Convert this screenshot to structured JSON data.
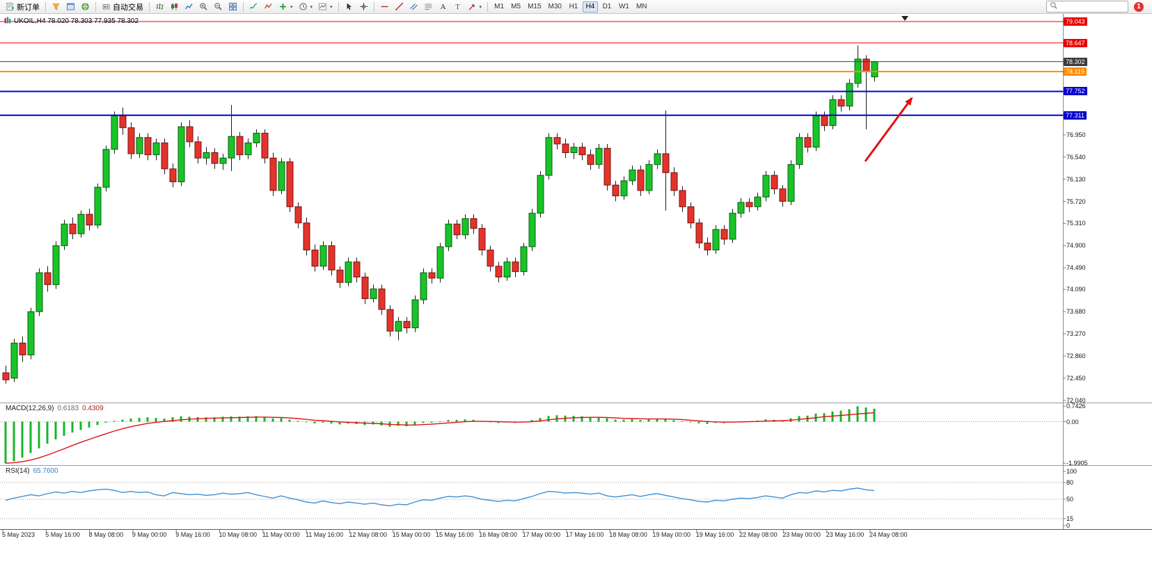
{
  "toolbar": {
    "new_order_label": "新订单",
    "auto_trading_label": "自动交易",
    "app_icons": [
      "market-watch-icon",
      "data-window-icon",
      "community-icon"
    ],
    "chart_tool_icons": [
      "bar-chart-icon",
      "candlestick-icon",
      "line-chart-icon",
      "zoom-in-icon",
      "zoom-out-icon",
      "tile-windows-icon"
    ],
    "indicator_tool_icons": [
      "indicators-icon",
      "objects-icon",
      "add-indicator-icon",
      "periods-icon",
      "templates-icon"
    ],
    "cursor_tool_icons": [
      "cursor-icon",
      "crosshair-icon"
    ],
    "draw_tool_icons": [
      "horizontal-line-icon",
      "trendline-icon",
      "channel-icon",
      "fibonacci-icon",
      "text-icon",
      "label-icon",
      "shapes-icon"
    ],
    "dropdown_icons": [
      "add-indicator-icon",
      "periods-icon",
      "templates-icon",
      "shap es-icon"
    ],
    "timeframes": [
      "M1",
      "M5",
      "M15",
      "M30",
      "H1",
      "H4",
      "D1",
      "W1",
      "MN"
    ],
    "active_timeframe": "H4",
    "notification_badge": "1",
    "search_placeholder": ""
  },
  "chart": {
    "title": "UKOIL,H4 78.020 78.303 77.935 78.302",
    "symbol": "UKOIL",
    "period": "H4",
    "open": "78.020",
    "high": "78.303",
    "low": "77.935",
    "close": "78.302",
    "macd_name": "MACD(12,26,9)",
    "macd_value_main": "0.6183",
    "macd_value_signal": "0.4309",
    "rsi_name": "RSI(14)",
    "rsi_value": "65.7600"
  },
  "colors": {
    "bull": "#18c428",
    "bear": "#e2342c",
    "wick": "#1a1a1a",
    "macd_hist": "#18b42a",
    "macd_signal": "#e01010",
    "rsi_line": "#3f8fd2",
    "arrow": "#e01010"
  },
  "chart_data": {
    "type": "candlestick",
    "symbol": "UKOIL",
    "timeframe": "H4",
    "price_levels": [
      {
        "label": "79.043",
        "value": 79.043,
        "color": "#e80000",
        "width": 1
      },
      {
        "label": "78.647",
        "value": 78.647,
        "color": "#e80000",
        "width": 1
      },
      {
        "label": "78.302",
        "value": 78.302,
        "color": "#3c3c3c",
        "width": 1
      },
      {
        "label": "78.119",
        "value": 78.119,
        "color": "#ff8c00",
        "width": 2
      },
      {
        "label": "77.752",
        "value": 77.752,
        "color": "#0000cc",
        "width": 2
      },
      {
        "label": "77.311",
        "value": 77.311,
        "color": "#0000cc",
        "width": 2
      }
    ],
    "price_ticks": [
      "76.950",
      "76.540",
      "76.130",
      "75.720",
      "75.310",
      "74.900",
      "74.490",
      "74.090",
      "73.680",
      "73.270",
      "72.860",
      "72.450",
      "72.040"
    ],
    "candles": [
      [
        72.55,
        72.68,
        72.35,
        72.42
      ],
      [
        72.45,
        73.18,
        72.38,
        73.1
      ],
      [
        73.1,
        73.22,
        72.75,
        72.88
      ],
      [
        72.88,
        73.75,
        72.8,
        73.68
      ],
      [
        73.68,
        74.48,
        73.6,
        74.4
      ],
      [
        74.4,
        74.52,
        74.05,
        74.18
      ],
      [
        74.18,
        74.98,
        74.1,
        74.9
      ],
      [
        74.9,
        75.38,
        74.82,
        75.3
      ],
      [
        75.3,
        75.42,
        75.02,
        75.12
      ],
      [
        75.12,
        75.55,
        75.05,
        75.48
      ],
      [
        75.48,
        75.58,
        75.18,
        75.28
      ],
      [
        75.28,
        76.05,
        75.22,
        75.98
      ],
      [
        75.98,
        76.75,
        75.9,
        76.68
      ],
      [
        76.68,
        77.38,
        76.6,
        77.3
      ],
      [
        77.3,
        77.45,
        76.95,
        77.08
      ],
      [
        77.08,
        77.18,
        76.5,
        76.6
      ],
      [
        76.6,
        76.98,
        76.52,
        76.9
      ],
      [
        76.9,
        76.98,
        76.48,
        76.58
      ],
      [
        76.58,
        76.88,
        76.48,
        76.8
      ],
      [
        76.8,
        76.88,
        76.22,
        76.32
      ],
      [
        76.32,
        76.42,
        75.98,
        76.08
      ],
      [
        76.08,
        77.18,
        76.0,
        77.1
      ],
      [
        77.1,
        77.22,
        76.72,
        76.82
      ],
      [
        76.82,
        76.92,
        76.42,
        76.52
      ],
      [
        76.52,
        76.72,
        76.4,
        76.62
      ],
      [
        76.62,
        76.7,
        76.32,
        76.42
      ],
      [
        76.42,
        76.6,
        76.3,
        76.52
      ],
      [
        76.52,
        77.5,
        76.28,
        76.92
      ],
      [
        76.92,
        77.0,
        76.48,
        76.58
      ],
      [
        76.58,
        76.88,
        76.5,
        76.8
      ],
      [
        76.8,
        77.05,
        76.72,
        76.98
      ],
      [
        76.98,
        77.05,
        76.42,
        76.52
      ],
      [
        76.52,
        76.62,
        75.82,
        75.92
      ],
      [
        75.92,
        76.52,
        75.85,
        76.45
      ],
      [
        76.45,
        76.52,
        75.52,
        75.62
      ],
      [
        75.62,
        75.7,
        75.22,
        75.32
      ],
      [
        75.32,
        75.42,
        74.72,
        74.82
      ],
      [
        74.82,
        74.92,
        74.42,
        74.52
      ],
      [
        74.52,
        74.98,
        74.45,
        74.9
      ],
      [
        74.9,
        74.98,
        74.35,
        74.45
      ],
      [
        74.45,
        74.52,
        74.12,
        74.22
      ],
      [
        74.22,
        74.68,
        74.15,
        74.6
      ],
      [
        74.6,
        74.68,
        74.22,
        74.32
      ],
      [
        74.32,
        74.4,
        73.82,
        73.92
      ],
      [
        73.92,
        74.18,
        73.85,
        74.1
      ],
      [
        74.1,
        74.18,
        73.62,
        73.72
      ],
      [
        73.72,
        73.8,
        73.22,
        73.32
      ],
      [
        73.32,
        73.58,
        73.15,
        73.5
      ],
      [
        73.5,
        73.58,
        73.28,
        73.38
      ],
      [
        73.38,
        73.98,
        73.3,
        73.9
      ],
      [
        73.9,
        74.48,
        73.82,
        74.4
      ],
      [
        74.4,
        74.48,
        74.2,
        74.3
      ],
      [
        74.3,
        74.95,
        74.22,
        74.88
      ],
      [
        74.88,
        75.38,
        74.8,
        75.3
      ],
      [
        75.3,
        75.38,
        75.02,
        75.1
      ],
      [
        75.1,
        75.48,
        75.02,
        75.4
      ],
      [
        75.4,
        75.48,
        75.12,
        75.22
      ],
      [
        75.22,
        75.3,
        74.72,
        74.82
      ],
      [
        74.82,
        74.9,
        74.42,
        74.52
      ],
      [
        74.52,
        74.6,
        74.22,
        74.32
      ],
      [
        74.32,
        74.68,
        74.25,
        74.6
      ],
      [
        74.6,
        74.68,
        74.32,
        74.42
      ],
      [
        74.42,
        74.95,
        74.35,
        74.88
      ],
      [
        74.88,
        75.58,
        74.8,
        75.5
      ],
      [
        75.5,
        76.28,
        75.42,
        76.2
      ],
      [
        76.2,
        76.98,
        76.12,
        76.9
      ],
      [
        76.9,
        76.98,
        76.68,
        76.78
      ],
      [
        76.78,
        76.88,
        76.52,
        76.62
      ],
      [
        76.62,
        76.8,
        76.5,
        76.72
      ],
      [
        76.72,
        76.8,
        76.48,
        76.58
      ],
      [
        76.58,
        76.68,
        76.3,
        76.4
      ],
      [
        76.4,
        76.78,
        76.32,
        76.7
      ],
      [
        76.7,
        76.78,
        75.92,
        76.02
      ],
      [
        76.02,
        76.1,
        75.72,
        75.82
      ],
      [
        75.82,
        76.18,
        75.75,
        76.1
      ],
      [
        76.1,
        76.38,
        76.02,
        76.3
      ],
      [
        76.3,
        76.38,
        75.82,
        75.92
      ],
      [
        75.92,
        76.48,
        75.85,
        76.4
      ],
      [
        76.4,
        76.68,
        76.32,
        76.6
      ],
      [
        76.6,
        77.4,
        75.55,
        76.25
      ],
      [
        76.25,
        76.35,
        75.82,
        75.92
      ],
      [
        75.92,
        76.0,
        75.52,
        75.62
      ],
      [
        75.62,
        75.7,
        75.22,
        75.32
      ],
      [
        75.32,
        75.4,
        74.85,
        74.95
      ],
      [
        74.95,
        75.05,
        74.72,
        74.82
      ],
      [
        74.82,
        75.28,
        74.75,
        75.2
      ],
      [
        75.2,
        75.28,
        74.92,
        75.02
      ],
      [
        75.02,
        75.58,
        74.95,
        75.5
      ],
      [
        75.5,
        75.78,
        75.42,
        75.7
      ],
      [
        75.7,
        75.78,
        75.52,
        75.62
      ],
      [
        75.62,
        75.88,
        75.55,
        75.8
      ],
      [
        75.8,
        76.28,
        75.72,
        76.2
      ],
      [
        76.2,
        76.28,
        75.85,
        75.95
      ],
      [
        75.95,
        76.02,
        75.62,
        75.72
      ],
      [
        75.72,
        76.48,
        75.65,
        76.4
      ],
      [
        76.4,
        76.98,
        76.32,
        76.9
      ],
      [
        76.9,
        76.98,
        76.62,
        76.72
      ],
      [
        76.72,
        77.38,
        76.65,
        77.3
      ],
      [
        77.3,
        77.38,
        77.02,
        77.12
      ],
      [
        77.12,
        77.68,
        77.05,
        77.6
      ],
      [
        77.6,
        77.68,
        77.38,
        77.48
      ],
      [
        77.48,
        77.98,
        77.4,
        77.9
      ],
      [
        77.9,
        78.6,
        77.82,
        78.35
      ],
      [
        78.35,
        78.42,
        77.05,
        78.12
      ],
      [
        78.02,
        78.303,
        77.935,
        78.302
      ]
    ],
    "macd": {
      "name": "MACD(12,26,9)",
      "current_main": 0.6183,
      "current_signal": 0.4309,
      "axis_labels": [
        "0.7426",
        "0.00",
        "-1.9905"
      ],
      "hist": [
        -1.99,
        -1.9,
        -1.72,
        -1.5,
        -1.28,
        -1.05,
        -0.85,
        -0.68,
        -0.52,
        -0.4,
        -0.28,
        -0.16,
        -0.05,
        0.04,
        0.1,
        0.15,
        0.18,
        0.21,
        0.18,
        0.15,
        0.22,
        0.26,
        0.24,
        0.22,
        0.21,
        0.21,
        0.24,
        0.25,
        0.24,
        0.26,
        0.27,
        0.22,
        0.16,
        0.17,
        0.1,
        0.04,
        -0.03,
        -0.08,
        -0.05,
        -0.09,
        -0.13,
        -0.09,
        -0.11,
        -0.16,
        -0.13,
        -0.18,
        -0.24,
        -0.2,
        -0.22,
        -0.14,
        -0.06,
        -0.05,
        0.02,
        0.08,
        0.09,
        0.11,
        0.09,
        0.03,
        -0.02,
        -0.06,
        -0.04,
        -0.06,
        0.0,
        0.08,
        0.18,
        0.28,
        0.31,
        0.29,
        0.28,
        0.26,
        0.23,
        0.23,
        0.16,
        0.1,
        0.1,
        0.12,
        0.08,
        0.11,
        0.14,
        0.12,
        0.07,
        0.02,
        -0.03,
        -0.08,
        -0.11,
        -0.06,
        -0.07,
        -0.02,
        0.02,
        0.02,
        0.05,
        0.11,
        0.09,
        0.06,
        0.16,
        0.27,
        0.29,
        0.39,
        0.41,
        0.49,
        0.53,
        0.6,
        0.74,
        0.68,
        0.62
      ],
      "signal": [
        -1.99,
        -1.97,
        -1.92,
        -1.84,
        -1.73,
        -1.6,
        -1.45,
        -1.3,
        -1.14,
        -0.99,
        -0.85,
        -0.71,
        -0.58,
        -0.45,
        -0.34,
        -0.24,
        -0.16,
        -0.08,
        -0.03,
        0.01,
        0.05,
        0.09,
        0.12,
        0.14,
        0.16,
        0.17,
        0.18,
        0.19,
        0.2,
        0.21,
        0.22,
        0.22,
        0.21,
        0.2,
        0.18,
        0.15,
        0.11,
        0.07,
        0.05,
        0.02,
        -0.01,
        -0.03,
        -0.05,
        -0.07,
        -0.08,
        -0.1,
        -0.13,
        -0.14,
        -0.16,
        -0.16,
        -0.14,
        -0.12,
        -0.09,
        -0.06,
        -0.03,
        0.0,
        0.02,
        0.02,
        0.01,
        0.0,
        -0.01,
        -0.02,
        -0.02,
        0.0,
        0.04,
        0.09,
        0.13,
        0.16,
        0.19,
        0.2,
        0.21,
        0.21,
        0.2,
        0.18,
        0.16,
        0.15,
        0.14,
        0.13,
        0.13,
        0.13,
        0.12,
        0.1,
        0.07,
        0.04,
        0.01,
        -0.01,
        -0.02,
        -0.02,
        -0.01,
        0.0,
        0.01,
        0.03,
        0.04,
        0.05,
        0.07,
        0.11,
        0.15,
        0.19,
        0.24,
        0.27,
        0.3,
        0.33,
        0.37,
        0.4,
        0.43
      ]
    },
    "rsi": {
      "name": "RSI(14)",
      "current": 65.76,
      "axis_labels": [
        "100",
        "80",
        "50",
        "15",
        "0"
      ],
      "level_lines": [
        80,
        50,
        15
      ],
      "values": [
        48,
        52,
        55,
        58,
        56,
        60,
        63,
        61,
        64,
        62,
        65,
        67,
        68,
        66,
        62,
        64,
        62,
        63,
        58,
        56,
        62,
        60,
        58,
        59,
        57,
        58,
        61,
        59,
        60,
        62,
        58,
        55,
        52,
        56,
        52,
        49,
        45,
        43,
        47,
        44,
        42,
        45,
        43,
        41,
        43,
        40,
        38,
        41,
        40,
        45,
        49,
        48,
        52,
        55,
        54,
        56,
        54,
        50,
        48,
        46,
        48,
        47,
        51,
        55,
        60,
        64,
        63,
        61,
        62,
        61,
        59,
        61,
        56,
        54,
        56,
        58,
        55,
        58,
        60,
        57,
        54,
        51,
        49,
        46,
        45,
        48,
        47,
        50,
        52,
        51,
        53,
        56,
        54,
        52,
        58,
        62,
        61,
        65,
        63,
        66,
        65,
        68,
        70,
        67,
        65.76
      ]
    },
    "time_labels": [
      "5 May 2023",
      "5 May 16:00",
      "8 May 08:00",
      "9 May 00:00",
      "9 May 16:00",
      "10 May 08:00",
      "11 May 00:00",
      "11 May 16:00",
      "12 May 08:00",
      "15 May 00:00",
      "15 May 16:00",
      "16 May 08:00",
      "17 May 00:00",
      "17 May 16:00",
      "18 May 08:00",
      "19 May 00:00",
      "19 May 16:00",
      "22 May 08:00",
      "23 May 00:00",
      "23 May 16:00",
      "24 May 08:00"
    ]
  }
}
